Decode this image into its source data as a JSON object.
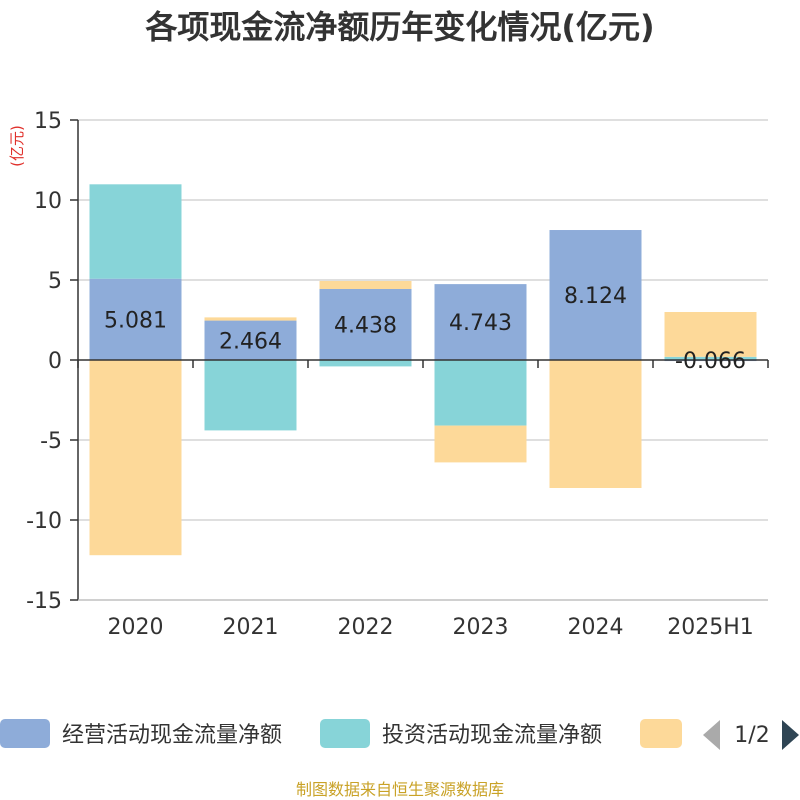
{
  "title": "各项现金流净额历年变化情况(亿元)",
  "unit_label": "(亿元)",
  "source": "制图数据来自恒生聚源数据库",
  "legend_pager": {
    "text": "1/2",
    "prev_icon": "triangle-left-icon",
    "next_icon": "triangle-right-icon"
  },
  "colors": {
    "operating": "#8eacd9",
    "investing": "#87d4d8",
    "financing": "#fdd999"
  },
  "chart_data": {
    "type": "bar",
    "stacked": true,
    "categories": [
      "2020",
      "2021",
      "2022",
      "2023",
      "2024",
      "2025H1"
    ],
    "ylim": [
      -15,
      15
    ],
    "yticks": [
      15,
      10,
      5,
      0,
      -5,
      -10,
      -15
    ],
    "grid": true,
    "legend_position": "bottom",
    "series": [
      {
        "name": "经营活动现金流量净额",
        "color": "#8eacd9",
        "values": [
          5.081,
          2.464,
          4.438,
          4.743,
          8.124,
          -0.066
        ],
        "labels": [
          "5.081",
          "2.464",
          "4.438",
          "4.743",
          "8.124",
          "-0.066"
        ]
      },
      {
        "name": "投资活动现金流量净额",
        "color": "#87d4d8",
        "values": [
          5.9,
          -4.4,
          -0.4,
          -4.1,
          0.0,
          0.2
        ]
      },
      {
        "name": "",
        "color": "#fdd999",
        "values": [
          -12.2,
          0.2,
          0.5,
          -2.3,
          -8.0,
          2.8
        ]
      }
    ]
  }
}
